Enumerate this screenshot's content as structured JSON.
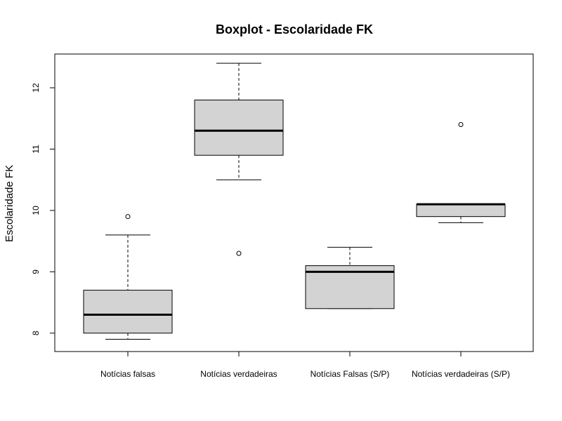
{
  "chart_data": {
    "type": "boxplot",
    "title": "Boxplot - Escolaridade FK",
    "xlabel": "",
    "ylabel": "Escolaridade FK",
    "ylim": [
      7.7,
      12.55
    ],
    "yticks": [
      "8",
      "9",
      "10",
      "11",
      "12"
    ],
    "grid": false,
    "box_fill": "#d3d3d3",
    "categories": [
      "Notícias falsas",
      "Notícias verdadeiras",
      "Notícias Falsas (S/P)",
      "Notícias verdadeiras (S/P)"
    ],
    "boxes": [
      {
        "whisker_low": 7.9,
        "q1": 8.0,
        "median": 8.3,
        "q3": 8.7,
        "whisker_high": 9.6,
        "outliers": [
          9.9
        ]
      },
      {
        "whisker_low": 10.5,
        "q1": 10.9,
        "median": 11.3,
        "q3": 11.8,
        "whisker_high": 12.4,
        "outliers": [
          9.3
        ]
      },
      {
        "whisker_low": 8.4,
        "q1": 8.4,
        "median": 9.0,
        "q3": 9.1,
        "whisker_high": 9.4,
        "outliers": []
      },
      {
        "whisker_low": 9.8,
        "q1": 9.9,
        "median": 10.1,
        "q3": 10.1,
        "whisker_high": 10.1,
        "outliers": [
          11.4
        ]
      }
    ]
  }
}
